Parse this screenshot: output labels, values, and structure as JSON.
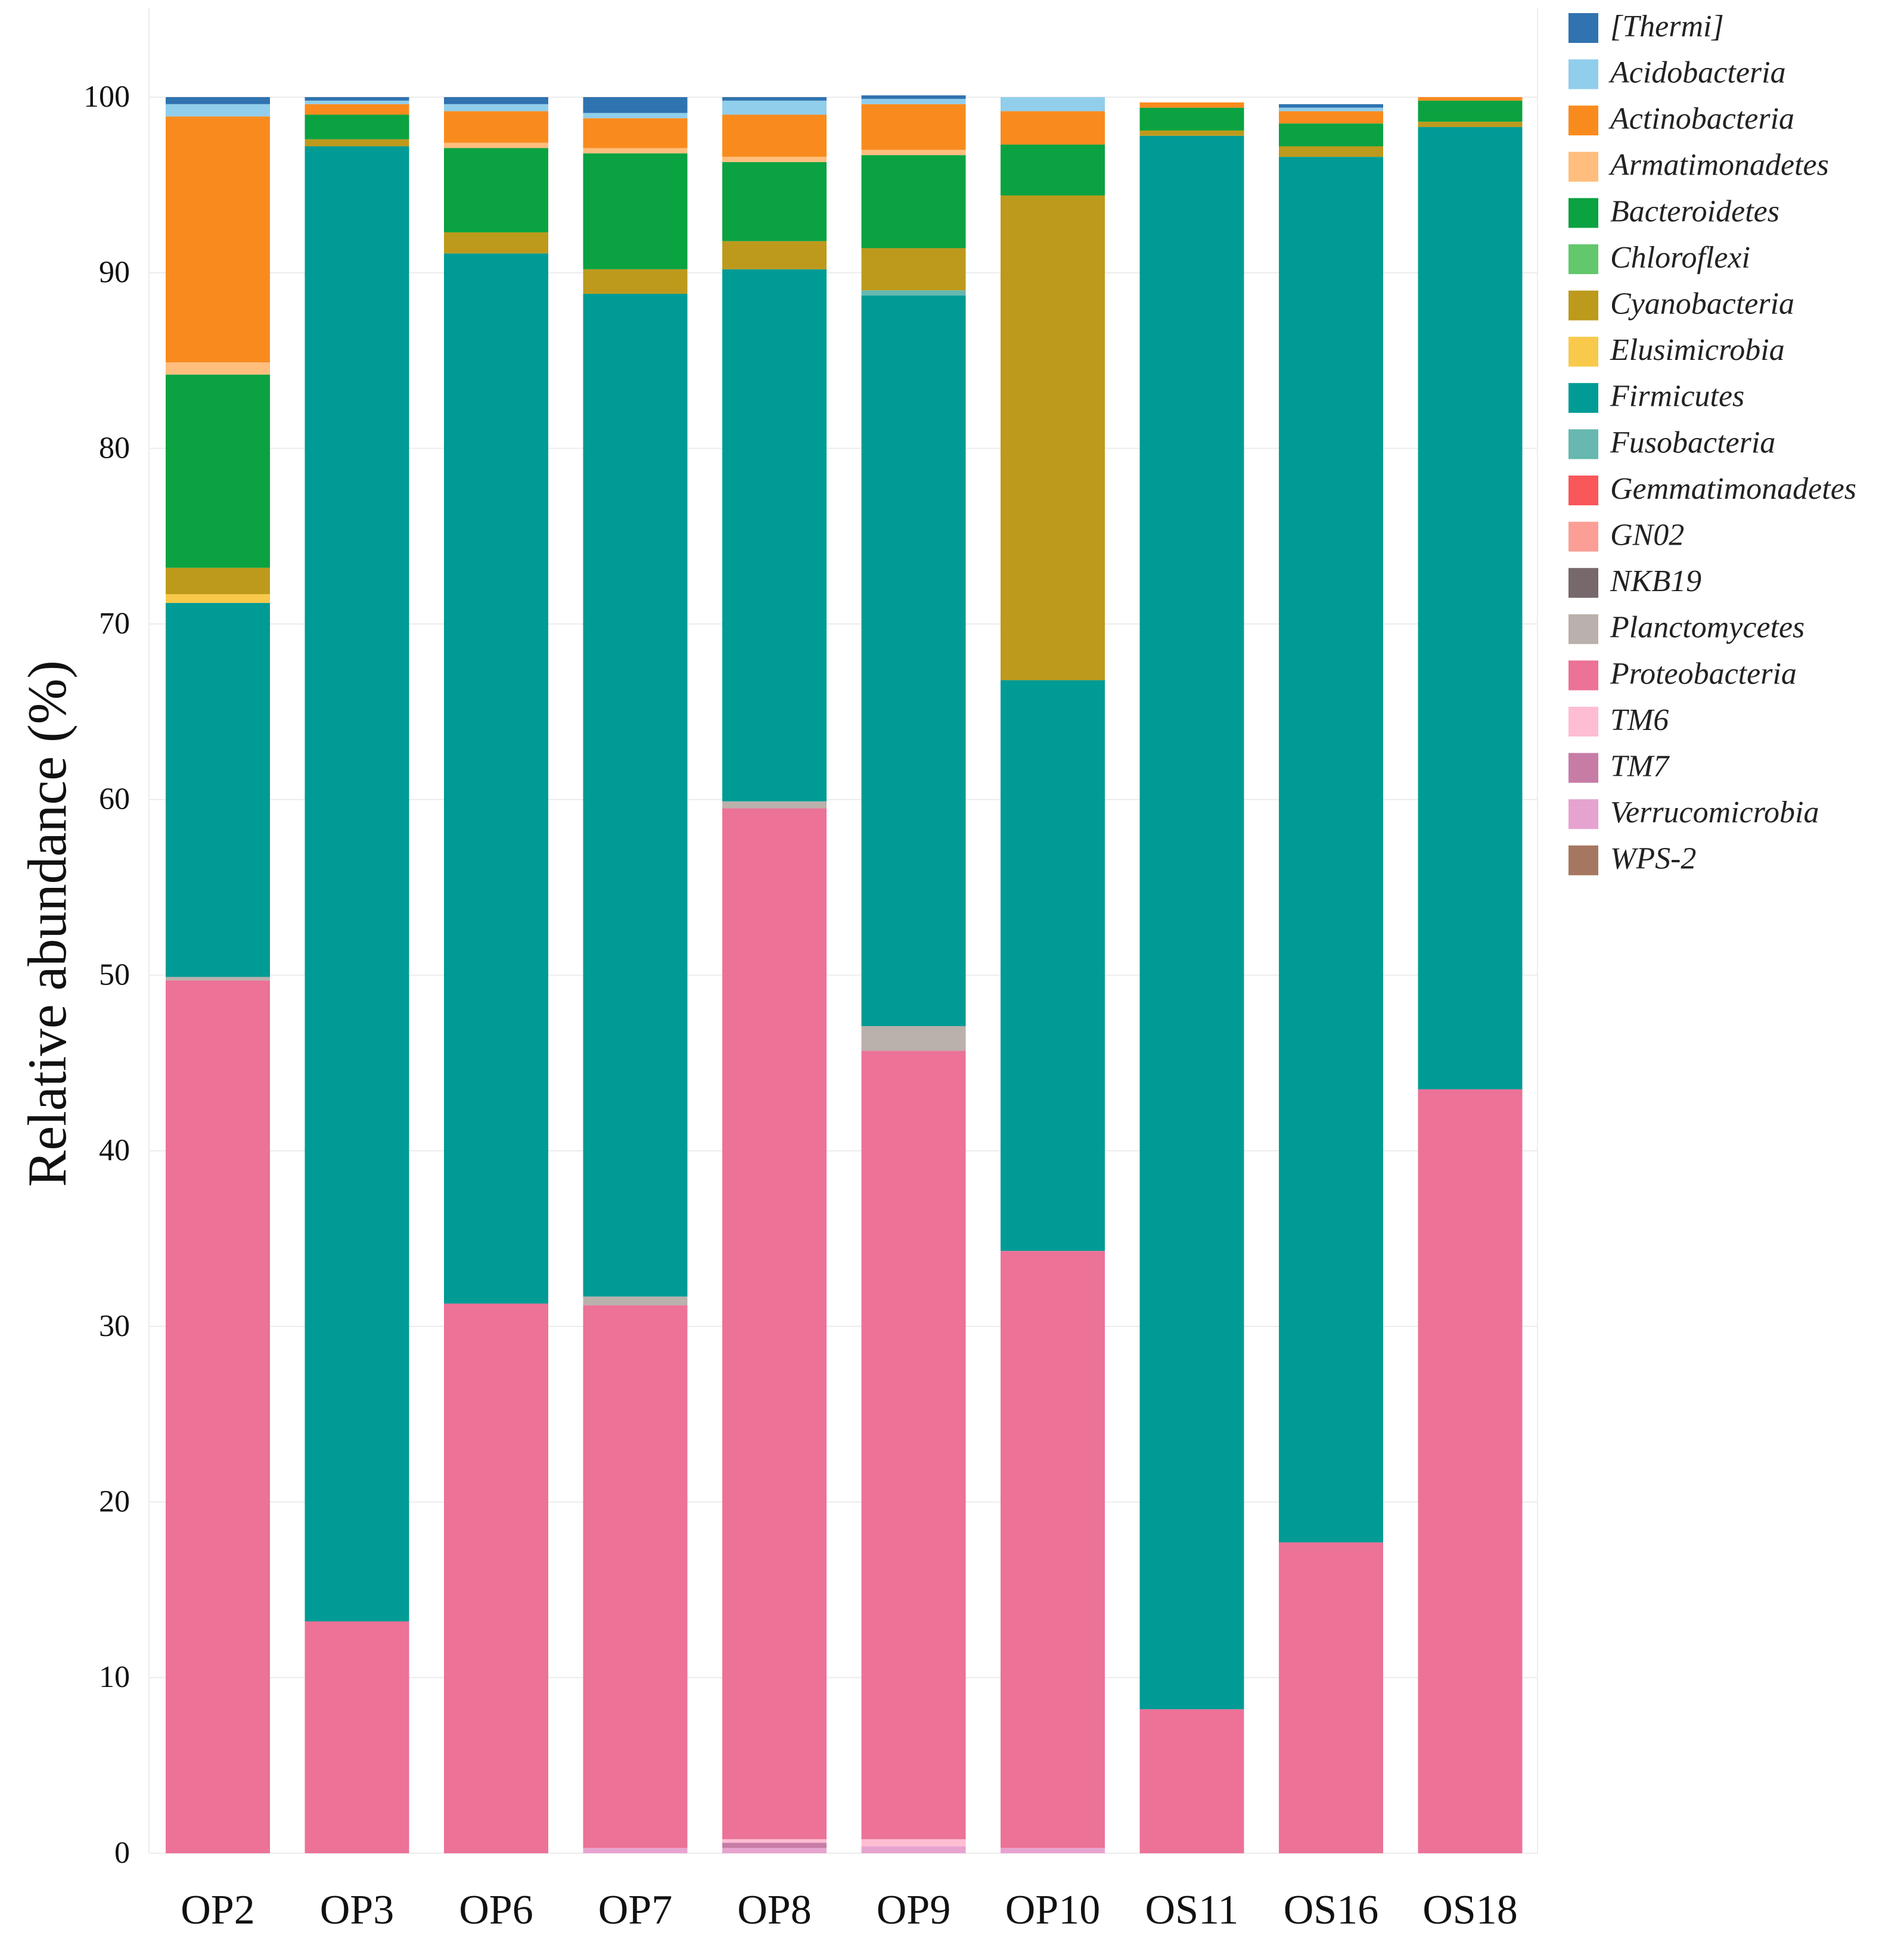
{
  "chart_data": {
    "type": "bar",
    "stacked": true,
    "title": "",
    "xlabel": "",
    "ylabel": "Relative abundance (%)",
    "ylim": [
      0,
      100
    ],
    "yticks": [
      "0",
      "10",
      "20",
      "30",
      "40",
      "50",
      "60",
      "70",
      "80",
      "90",
      "100"
    ],
    "grid": true,
    "legend_position": "right",
    "categories": [
      "OP2",
      "OP3",
      "OP6",
      "OP7",
      "OP8",
      "OP9",
      "OP10",
      "OS11",
      "OS16",
      "OS18"
    ],
    "series": [
      {
        "name": "Verrucomicrobia",
        "color": "#E7A3CF",
        "values": [
          0,
          0,
          0,
          0.3,
          0.3,
          0.4,
          0.3,
          0,
          0,
          0
        ]
      },
      {
        "name": "TM7",
        "color": "#C77CA6",
        "values": [
          0,
          0,
          0,
          0,
          0.3,
          0,
          0,
          0,
          0,
          0
        ]
      },
      {
        "name": "TM6",
        "color": "#FFBDD4",
        "values": [
          0,
          0,
          0,
          0,
          0.2,
          0.4,
          0,
          0,
          0,
          0
        ]
      },
      {
        "name": "Proteobacteria",
        "color": "#EC7297",
        "values": [
          49.7,
          13.2,
          31.3,
          30.9,
          58.7,
          44.9,
          34.0,
          8.2,
          17.7,
          43.5
        ]
      },
      {
        "name": "Planctomycetes",
        "color": "#BAB0AC",
        "values": [
          0.2,
          0,
          0,
          0.5,
          0.4,
          1.4,
          0,
          0,
          0,
          0
        ]
      },
      {
        "name": "Firmicutes",
        "color": "#009B95",
        "values": [
          21.3,
          84.0,
          59.8,
          57.1,
          30.3,
          41.6,
          32.5,
          89.6,
          78.9,
          54.8
        ]
      },
      {
        "name": "Fusobacteria",
        "color": "#66B8B0",
        "values": [
          0,
          0,
          0,
          0,
          0,
          0.3,
          0,
          0,
          0,
          0
        ]
      },
      {
        "name": "Elusimicrobia",
        "color": "#F8C94A",
        "values": [
          0.5,
          0,
          0,
          0,
          0,
          0,
          0,
          0,
          0,
          0
        ]
      },
      {
        "name": "Cyanobacteria",
        "color": "#BD9A1C",
        "values": [
          1.5,
          0.4,
          1.2,
          1.4,
          1.6,
          2.4,
          27.6,
          0.3,
          0.6,
          0.3
        ]
      },
      {
        "name": "Chloroflexi",
        "color": "#63C76B",
        "values": [
          0,
          0,
          0,
          0,
          0,
          0,
          0,
          0,
          0,
          0
        ]
      },
      {
        "name": "Bacteroidetes",
        "color": "#0BA241",
        "values": [
          11.0,
          1.4,
          4.8,
          6.6,
          4.5,
          5.3,
          2.9,
          1.3,
          1.3,
          1.2
        ]
      },
      {
        "name": "Armatimonadetes",
        "color": "#FFBE7D",
        "values": [
          0.7,
          0,
          0.3,
          0.3,
          0.3,
          0.3,
          0,
          0,
          0,
          0
        ]
      },
      {
        "name": "Actinobacteria",
        "color": "#F98B1E",
        "values": [
          14.0,
          0.6,
          1.8,
          1.7,
          2.4,
          2.6,
          1.9,
          0.3,
          0.7,
          0.2
        ]
      },
      {
        "name": "Acidobacteria",
        "color": "#91CEEB",
        "values": [
          0.7,
          0.2,
          0.4,
          0.3,
          0.8,
          0.3,
          0.8,
          0,
          0.2,
          0
        ]
      },
      {
        "name": "[Thermi]",
        "color": "#2F73B0",
        "values": [
          0.4,
          0.2,
          0.4,
          0.9,
          0.2,
          0.2,
          0,
          0,
          0.2,
          0
        ]
      },
      {
        "name": "Gemmatimonadetes",
        "color": "#F9575A",
        "values": [
          0,
          0,
          0,
          0,
          0,
          0,
          0,
          0,
          0,
          0
        ]
      },
      {
        "name": "GN02",
        "color": "#FB9E95",
        "values": [
          0,
          0,
          0,
          0,
          0,
          0,
          0,
          0,
          0,
          0
        ]
      },
      {
        "name": "NKB19",
        "color": "#76686B",
        "values": [
          0,
          0,
          0,
          0,
          0,
          0,
          0,
          0,
          0,
          0
        ]
      },
      {
        "name": "WPS-2",
        "color": "#A67760",
        "values": [
          0,
          0,
          0,
          0,
          0,
          0,
          0,
          0,
          0,
          0
        ]
      }
    ],
    "legend": [
      {
        "label": "[Thermi]",
        "color": "#2F73B0"
      },
      {
        "label": "Acidobacteria",
        "color": "#91CEEB"
      },
      {
        "label": "Actinobacteria",
        "color": "#F98B1E"
      },
      {
        "label": "Armatimonadetes",
        "color": "#FFBE7D"
      },
      {
        "label": "Bacteroidetes",
        "color": "#0BA241"
      },
      {
        "label": "Chloroflexi",
        "color": "#63C76B"
      },
      {
        "label": "Cyanobacteria",
        "color": "#BD9A1C"
      },
      {
        "label": "Elusimicrobia",
        "color": "#F8C94A"
      },
      {
        "label": "Firmicutes",
        "color": "#009B95"
      },
      {
        "label": "Fusobacteria",
        "color": "#66B8B0"
      },
      {
        "label": "Gemmatimonadetes",
        "color": "#F9575A"
      },
      {
        "label": "GN02",
        "color": "#FB9E95"
      },
      {
        "label": "NKB19",
        "color": "#76686B"
      },
      {
        "label": "Planctomycetes",
        "color": "#BAB0AC"
      },
      {
        "label": "Proteobacteria",
        "color": "#EC7297"
      },
      {
        "label": "TM6",
        "color": "#FFBDD4"
      },
      {
        "label": "TM7",
        "color": "#C77CA6"
      },
      {
        "label": "Verrucomicrobia",
        "color": "#E7A3CF"
      },
      {
        "label": "WPS-2",
        "color": "#A67760"
      }
    ]
  }
}
